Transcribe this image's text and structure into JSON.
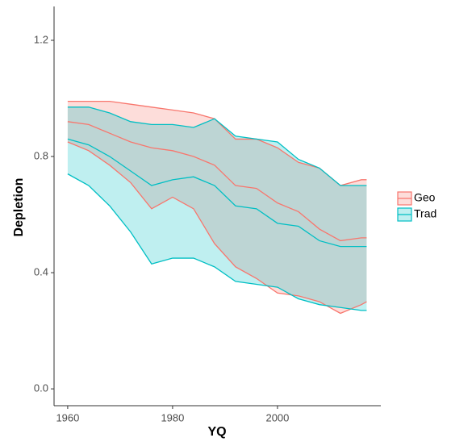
{
  "chart_data": {
    "type": "ribbon",
    "x_label": "YQ",
    "y_label": "Depletion",
    "x": [
      1960,
      1964,
      1968,
      1972,
      1976,
      1980,
      1984,
      1988,
      1992,
      1996,
      2000,
      2004,
      2008,
      2012,
      2016,
      2017
    ],
    "series": [
      {
        "name": "Geo",
        "color": "#f8766d",
        "upper": [
          0.99,
          0.99,
          0.99,
          0.98,
          0.97,
          0.96,
          0.95,
          0.93,
          0.86,
          0.86,
          0.83,
          0.78,
          0.76,
          0.7,
          0.72,
          0.72
        ],
        "values": [
          0.92,
          0.91,
          0.88,
          0.85,
          0.83,
          0.82,
          0.8,
          0.77,
          0.7,
          0.69,
          0.64,
          0.61,
          0.55,
          0.51,
          0.52,
          0.52
        ],
        "lower": [
          0.85,
          0.82,
          0.77,
          0.71,
          0.62,
          0.66,
          0.62,
          0.5,
          0.42,
          0.38,
          0.33,
          0.32,
          0.3,
          0.26,
          0.29,
          0.3
        ]
      },
      {
        "name": "Trad",
        "color": "#00bfc4",
        "upper": [
          0.97,
          0.97,
          0.95,
          0.92,
          0.91,
          0.91,
          0.9,
          0.93,
          0.87,
          0.86,
          0.85,
          0.79,
          0.76,
          0.7,
          0.7,
          0.7
        ],
        "values": [
          0.86,
          0.84,
          0.8,
          0.75,
          0.7,
          0.72,
          0.73,
          0.7,
          0.63,
          0.62,
          0.57,
          0.56,
          0.51,
          0.49,
          0.49,
          0.49
        ],
        "lower": [
          0.74,
          0.7,
          0.63,
          0.54,
          0.43,
          0.45,
          0.45,
          0.42,
          0.37,
          0.36,
          0.35,
          0.31,
          0.29,
          0.28,
          0.27,
          0.27
        ]
      }
    ],
    "xlim": [
      1957.4,
      2019.7
    ],
    "xticks": [
      1960,
      1980,
      2000
    ],
    "ylim": [
      -0.058,
      1.311
    ],
    "yticks": [
      {
        "value": 0,
        "label": "0.0"
      },
      0.4,
      0.8,
      1.2
    ],
    "legend": "right",
    "grid": false
  }
}
